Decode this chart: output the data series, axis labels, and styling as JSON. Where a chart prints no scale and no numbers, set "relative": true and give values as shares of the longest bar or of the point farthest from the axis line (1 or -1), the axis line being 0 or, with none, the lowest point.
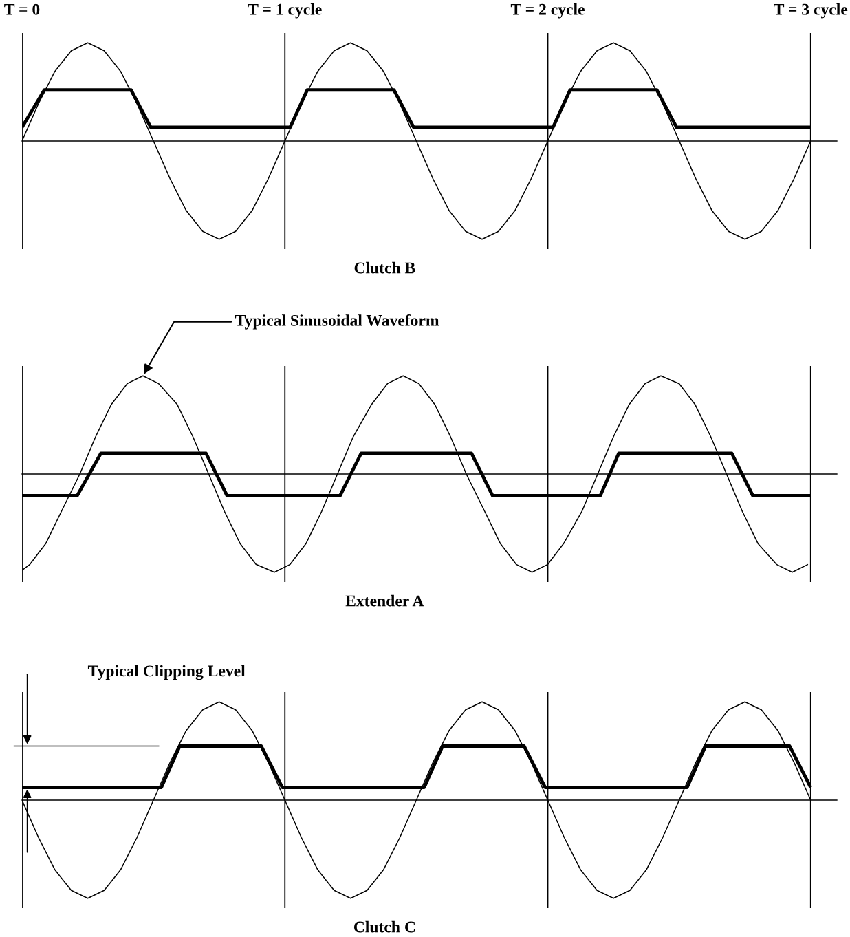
{
  "chart_data": [
    {
      "type": "line",
      "relative": true,
      "xlabel": "Clutch B",
      "xlim": [
        0,
        3.1
      ],
      "tick_labels": "x",
      "grid": "x",
      "xticks": [
        {
          "value": 0,
          "label": "T = 0"
        },
        {
          "value": 1,
          "label": "T = 1 cycle"
        },
        {
          "value": 2,
          "label": "T = 2 cycle"
        },
        {
          "value": 3,
          "label": "T = 3 cycle"
        }
      ],
      "series": [
        {
          "color": "#000000",
          "x": [
            0,
            0.0625,
            0.125,
            0.1875,
            0.25,
            0.3125,
            0.375,
            0.4375,
            0.5,
            0.5625,
            0.625,
            0.6875,
            0.75,
            0.8125,
            0.875,
            0.9375,
            1,
            1.0625,
            1.125,
            1.1875,
            1.25,
            1.3125,
            1.375,
            1.4375,
            1.5,
            1.5625,
            1.625,
            1.6875,
            1.75,
            1.8125,
            1.875,
            1.9375,
            2,
            2.0625,
            2.125,
            2.1875,
            2.25,
            2.3125,
            2.375,
            2.4375,
            2.5,
            2.5625,
            2.625,
            2.6875,
            2.75,
            2.8125,
            2.875,
            2.9375,
            3
          ],
          "values": [
            0,
            0.38,
            0.71,
            0.92,
            1,
            0.92,
            0.71,
            0.38,
            0,
            -0.38,
            -0.71,
            -0.92,
            -1,
            -0.92,
            -0.71,
            -0.38,
            0,
            0.38,
            0.71,
            0.92,
            1,
            0.92,
            0.71,
            0.38,
            0,
            -0.38,
            -0.71,
            -0.92,
            -1,
            -0.92,
            -0.71,
            -0.38,
            0,
            0.38,
            0.71,
            0.92,
            1,
            0.92,
            0.71,
            0.38,
            0,
            -0.38,
            -0.71,
            -0.92,
            -1,
            -0.92,
            -0.71,
            -0.38,
            0
          ]
        },
        {
          "color": "#000000",
          "x": [
            0,
            0.085,
            0.415,
            0.49,
            1.02,
            1.085,
            1.415,
            1.49,
            2.02,
            2.085,
            2.415,
            2.49,
            3.0
          ],
          "values": [
            0.14,
            0.52,
            0.52,
            0.14,
            0.14,
            0.52,
            0.52,
            0.14,
            0.14,
            0.52,
            0.52,
            0.14,
            0.14
          ]
        }
      ]
    },
    {
      "type": "line",
      "relative": true,
      "xlabel": "Extender A",
      "xlim": [
        0,
        3.1
      ],
      "tick_labels": false,
      "grid": "x",
      "xticks": [
        {
          "value": 0,
          "label": null
        },
        {
          "value": 1,
          "label": null
        },
        {
          "value": 2,
          "label": null
        },
        {
          "value": 3,
          "label": null
        }
      ],
      "annotations": [
        {
          "text": "Typical Sinusoidal Waveform",
          "x": 0.46,
          "y": 1
        }
      ],
      "series": [
        {
          "color": "#000000",
          "x": [
            0,
            0.03,
            0.09,
            0.15,
            0.22,
            0.28,
            0.34,
            0.4,
            0.46,
            0.52,
            0.59,
            0.65,
            0.71,
            0.77,
            0.83,
            0.89,
            0.96,
            1.02,
            1.08,
            1.14,
            1.2,
            1.26,
            1.33,
            1.39,
            1.45,
            1.51,
            1.57,
            1.63,
            1.69,
            1.76,
            1.82,
            1.88,
            1.94,
            2.0,
            2.06,
            2.13,
            2.19,
            2.25,
            2.31,
            2.37,
            2.43,
            2.5,
            2.56,
            2.62,
            2.68,
            2.74,
            2.8,
            2.87,
            2.93,
            2.99
          ],
          "values": [
            -0.98,
            -0.92,
            -0.71,
            -0.38,
            0,
            0.38,
            0.71,
            0.92,
            1,
            0.92,
            0.71,
            0.38,
            0,
            -0.38,
            -0.71,
            -0.92,
            -1,
            -0.92,
            -0.71,
            -0.38,
            0,
            0.38,
            0.71,
            0.92,
            1,
            0.92,
            0.71,
            0.38,
            0,
            -0.38,
            -0.71,
            -0.92,
            -1,
            -0.92,
            -0.71,
            -0.38,
            0,
            0.38,
            0.71,
            0.92,
            1,
            0.92,
            0.71,
            0.38,
            0,
            -0.38,
            -0.71,
            -0.92,
            -1,
            -0.92
          ]
        },
        {
          "color": "#000000",
          "x": [
            0,
            0.21,
            0.3,
            0.7,
            0.78,
            1.21,
            1.29,
            1.71,
            1.79,
            2.2,
            2.27,
            2.7,
            2.78,
            3.0
          ],
          "values": [
            -0.22,
            -0.22,
            0.21,
            0.21,
            -0.22,
            -0.22,
            0.21,
            0.21,
            -0.22,
            -0.22,
            0.21,
            0.21,
            -0.22,
            -0.22
          ]
        }
      ]
    },
    {
      "type": "line",
      "relative": true,
      "xlabel": "Clutch C",
      "xlim": [
        0,
        3.1
      ],
      "tick_labels": false,
      "grid": "x",
      "xticks": [
        {
          "value": 0,
          "label": null
        },
        {
          "value": 1,
          "label": null
        },
        {
          "value": 2,
          "label": null
        },
        {
          "value": 3,
          "label": null
        }
      ],
      "annotations": [
        "Typical Clipping Level"
      ],
      "series": [
        {
          "color": "#000000",
          "x": [
            0,
            0.0625,
            0.125,
            0.1875,
            0.25,
            0.3125,
            0.375,
            0.4375,
            0.5,
            0.5625,
            0.625,
            0.6875,
            0.75,
            0.8125,
            0.875,
            0.9375,
            1,
            1.0625,
            1.125,
            1.1875,
            1.25,
            1.3125,
            1.375,
            1.4375,
            1.5,
            1.5625,
            1.625,
            1.6875,
            1.75,
            1.8125,
            1.875,
            1.9375,
            2,
            2.0625,
            2.125,
            2.1875,
            2.25,
            2.3125,
            2.375,
            2.4375,
            2.5,
            2.5625,
            2.625,
            2.6875,
            2.75,
            2.8125,
            2.875,
            2.9375,
            3
          ],
          "values": [
            0,
            -0.38,
            -0.71,
            -0.92,
            -1,
            -0.92,
            -0.71,
            -0.38,
            0,
            0.38,
            0.71,
            0.92,
            1,
            0.92,
            0.71,
            0.38,
            0,
            -0.38,
            -0.71,
            -0.92,
            -1,
            -0.92,
            -0.71,
            -0.38,
            0,
            0.38,
            0.71,
            0.92,
            1,
            0.92,
            0.71,
            0.38,
            0,
            -0.38,
            -0.71,
            -0.92,
            -1,
            -0.92,
            -0.71,
            -0.38,
            0,
            0.38,
            0.71,
            0.92,
            1,
            0.92,
            0.71,
            0.38,
            0
          ]
        },
        {
          "color": "#000000",
          "x": [
            0,
            0.53,
            0.6,
            0.91,
            0.99,
            1.53,
            1.6,
            1.91,
            1.99,
            2.53,
            2.6,
            2.92,
            3.0
          ],
          "values": [
            0.13,
            0.13,
            0.55,
            0.55,
            0.13,
            0.13,
            0.55,
            0.55,
            0.13,
            0.13,
            0.55,
            0.55,
            0.13
          ]
        }
      ]
    }
  ]
}
